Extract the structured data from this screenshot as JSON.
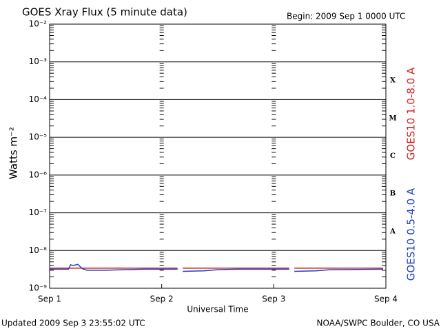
{
  "chart_data": {
    "type": "line",
    "title": "GOES Xray Flux (5 minute data)",
    "subtitle": "Begin:  2009 Sep 1 0000 UTC",
    "x_label": "Universal Time",
    "y_label": "Watts m⁻²",
    "footer_left": "Updated 2009 Sep  3 23:55:02 UTC",
    "footer_right": "NOAA/SWPC Boulder, CO USA",
    "flare_classes": [
      "X",
      "M",
      "C",
      "B",
      "A"
    ],
    "log_y": true,
    "grid": true,
    "x": [
      0,
      4,
      4.5,
      5,
      6,
      6.5,
      7,
      8,
      12,
      20,
      27.4,
      27.5,
      28.5,
      33,
      36,
      40,
      51.3,
      51.5,
      52.4,
      57,
      60,
      71.4
    ],
    "xlim": [
      0,
      72
    ],
    "xticks": [
      {
        "value": 0,
        "label": "Sep 1"
      },
      {
        "value": 24,
        "label": "Sep 2"
      },
      {
        "value": 48,
        "label": "Sep 3"
      },
      {
        "value": 72,
        "label": "Sep 4"
      }
    ],
    "ylim": [
      1e-09,
      0.01
    ],
    "yticks": [
      {
        "value": 1e-09,
        "label": "10⁻⁹"
      },
      {
        "value": 1e-08,
        "label": "10⁻⁸"
      },
      {
        "value": 1e-07,
        "label": "10⁻⁷"
      },
      {
        "value": 1e-06,
        "label": "10⁻⁶"
      },
      {
        "value": 1e-05,
        "label": "10⁻⁵"
      },
      {
        "value": 0.0001,
        "label": "10⁻⁴"
      },
      {
        "value": 0.001,
        "label": "10⁻³"
      },
      {
        "value": 0.01,
        "label": "10⁻²"
      }
    ],
    "series": [
      {
        "name": "GOES10 1.0-8.0 A",
        "color": "#d62020",
        "values": [
          3.4e-09,
          3.4e-09,
          3.4e-09,
          3.4e-09,
          3.4e-09,
          3.4e-09,
          3.4e-09,
          3.4e-09,
          3.4e-09,
          3.4e-09,
          3.4e-09,
          null,
          3.4e-09,
          3.4e-09,
          3.4e-09,
          3.4e-09,
          3.4e-09,
          null,
          3.4e-09,
          3.4e-09,
          3.4e-09,
          3.4e-09
        ]
      },
      {
        "name": "GOES10 0.5-4.0 A",
        "color": "#1f3fbf",
        "values": [
          3.2e-09,
          3.2e-09,
          4.2e-09,
          4e-09,
          4.3e-09,
          3.8e-09,
          3.3e-09,
          3e-09,
          3e-09,
          3.2e-09,
          3.2e-09,
          null,
          2.8e-09,
          2.9e-09,
          3.1e-09,
          3.2e-09,
          3.2e-09,
          null,
          2.8e-09,
          2.9e-09,
          3.1e-09,
          3.2e-09
        ]
      }
    ]
  }
}
